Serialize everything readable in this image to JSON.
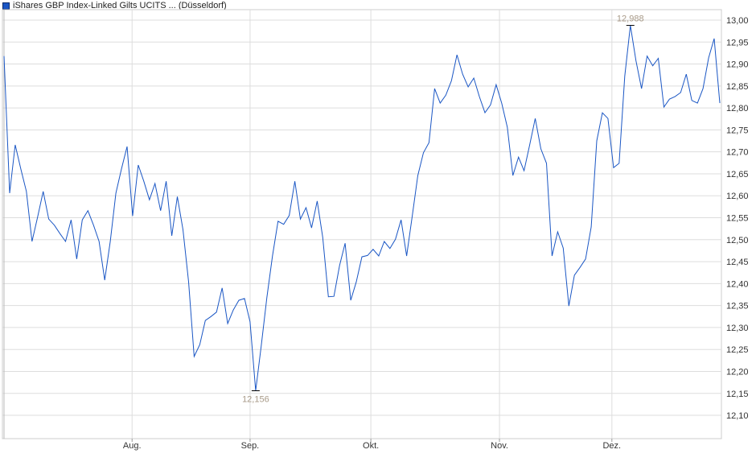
{
  "chart_data": {
    "type": "line",
    "title": "",
    "legend": {
      "label": "iShares GBP Index-Linked Gilts UCITS ... (Düsseldorf)",
      "placement": "top-left"
    },
    "xlabel": "",
    "ylabel": "",
    "ylim": [
      12.05,
      13.02
    ],
    "y_ticks": [
      "12,10",
      "12,15",
      "12,20",
      "12,25",
      "12,30",
      "12,35",
      "12,40",
      "12,45",
      "12,50",
      "12,55",
      "12,60",
      "12,65",
      "12,70",
      "12,75",
      "12,80",
      "12,85",
      "12,90",
      "12,95",
      "13,00"
    ],
    "y_tick_values": [
      12.1,
      12.15,
      12.2,
      12.25,
      12.3,
      12.35,
      12.4,
      12.45,
      12.5,
      12.55,
      12.6,
      12.65,
      12.7,
      12.75,
      12.8,
      12.85,
      12.9,
      12.95,
      13.0
    ],
    "x_ticks": [
      {
        "label": "Aug.",
        "index": 22.9
      },
      {
        "label": "Sep.",
        "index": 44.0
      },
      {
        "label": "Okt.",
        "index": 65.6
      },
      {
        "label": "Nov.",
        "index": 88.6
      },
      {
        "label": "Dez.",
        "index": 108.7
      }
    ],
    "grid": true,
    "color": "#1a56c4",
    "annotations": [
      {
        "label": "12,988",
        "type": "max",
        "value": 12.988
      },
      {
        "label": "12,156",
        "type": "min",
        "value": 12.156
      }
    ],
    "series": [
      {
        "values": [
          12.918,
          12.606,
          12.716,
          12.661,
          12.61,
          12.496,
          12.551,
          12.61,
          12.547,
          12.533,
          12.514,
          12.496,
          12.545,
          12.456,
          12.545,
          12.566,
          12.533,
          12.496,
          12.408,
          12.496,
          12.606,
          12.661,
          12.712,
          12.554,
          12.67,
          12.633,
          12.591,
          12.628,
          12.566,
          12.633,
          12.509,
          12.598,
          12.523,
          12.404,
          12.234,
          12.261,
          12.316,
          12.325,
          12.335,
          12.39,
          12.309,
          12.34,
          12.362,
          12.366,
          12.313,
          12.156,
          12.258,
          12.368,
          12.463,
          12.542,
          12.535,
          12.555,
          12.633,
          12.547,
          12.573,
          12.527,
          12.588,
          12.505,
          12.37,
          12.371,
          12.441,
          12.492,
          12.362,
          12.404,
          12.461,
          12.464,
          12.478,
          12.463,
          12.496,
          12.48,
          12.501,
          12.545,
          12.463,
          12.554,
          12.646,
          12.698,
          12.721,
          12.844,
          12.811,
          12.829,
          12.862,
          12.921,
          12.877,
          12.848,
          12.868,
          12.826,
          12.789,
          12.807,
          12.853,
          12.811,
          12.756,
          12.646,
          12.688,
          12.657,
          12.716,
          12.776,
          12.707,
          12.674,
          12.463,
          12.518,
          12.481,
          12.349,
          12.419,
          12.437,
          12.456,
          12.529,
          12.725,
          12.789,
          12.776,
          12.664,
          12.674,
          12.872,
          12.988,
          12.908,
          12.844,
          12.918,
          12.896,
          12.913,
          12.802,
          12.82,
          12.826,
          12.835,
          12.877,
          12.817,
          12.811,
          12.844,
          12.914,
          12.958,
          12.811
        ]
      }
    ]
  }
}
